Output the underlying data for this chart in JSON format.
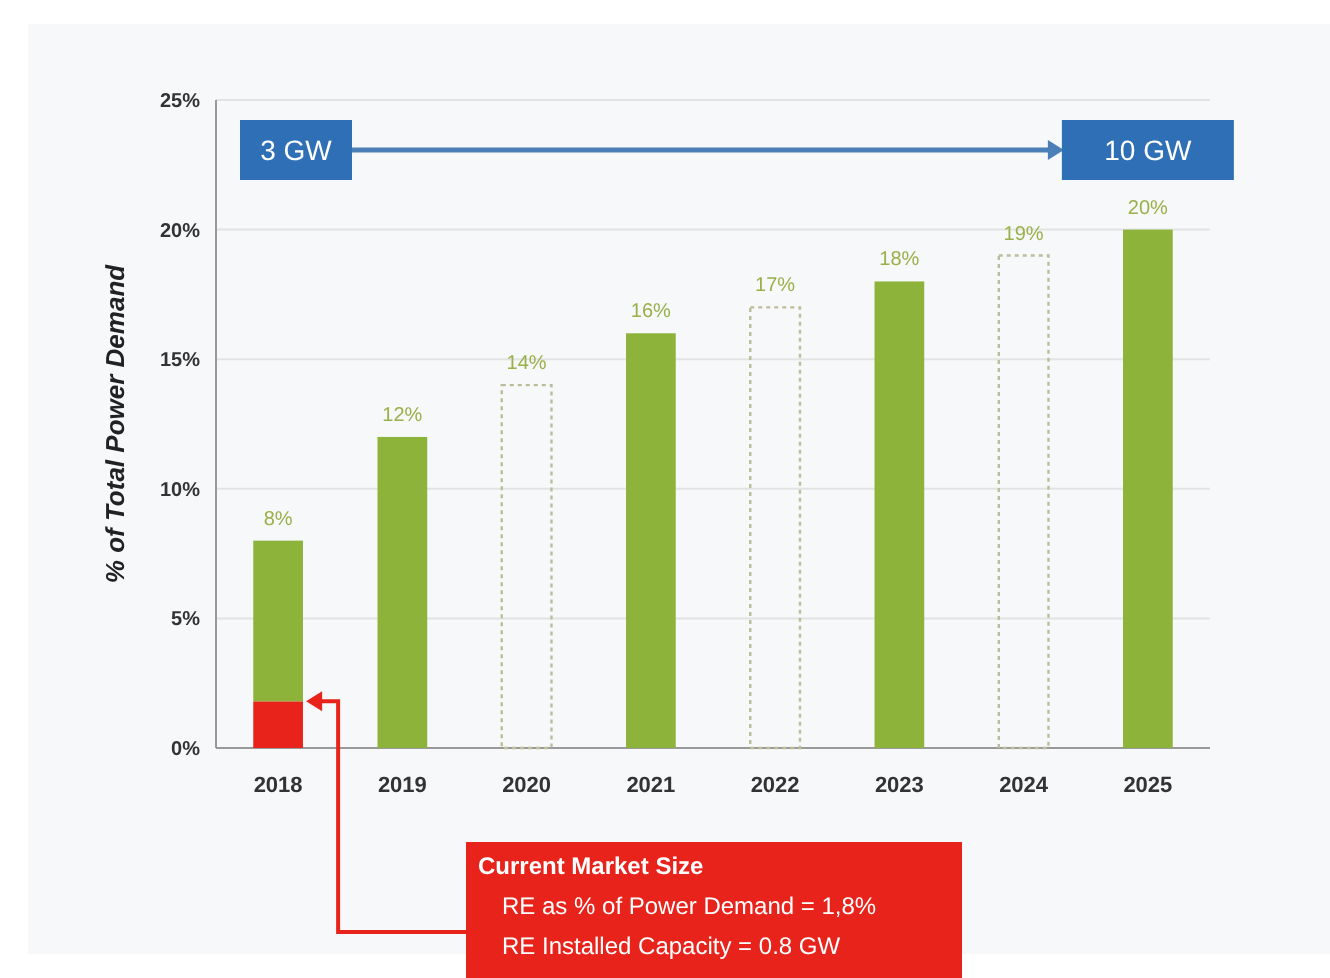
{
  "chart_data": {
    "type": "bar",
    "ylabel": "% of Total Power Demand",
    "categories": [
      "2018",
      "2019",
      "2020",
      "2021",
      "2022",
      "2023",
      "2024",
      "2025"
    ],
    "stacked": true,
    "series": [
      {
        "color": "#e8231b",
        "values": [
          1.8,
          null,
          null,
          null,
          null,
          null,
          null,
          null
        ]
      },
      {
        "color": "#8db33a",
        "values": [
          6.2,
          12,
          null,
          16,
          null,
          18,
          null,
          20
        ]
      },
      {
        "color": "#bdbd9a",
        "line_style": "dotted",
        "values": [
          null,
          null,
          14,
          null,
          17,
          null,
          19,
          null
        ]
      }
    ],
    "totals": [
      "8%",
      "12%",
      "14%",
      "16%",
      "17%",
      "18%",
      "19%",
      "20%"
    ],
    "ylim": [
      0,
      25
    ],
    "yticks": [
      {
        "value": 0,
        "label": "0%"
      },
      {
        "value": 5,
        "label": "5%"
      },
      {
        "value": 10,
        "label": "10%"
      },
      {
        "value": 15,
        "label": "15%"
      },
      {
        "value": 20,
        "label": "20%"
      },
      {
        "value": 25,
        "label": "25%"
      }
    ],
    "grid": "y",
    "annotations": [
      "3 GW",
      "10 GW",
      "Current Market Size",
      "RE as % of Power Demand =  1,8%",
      "RE Installed Capacity = 0.8 GW"
    ]
  }
}
